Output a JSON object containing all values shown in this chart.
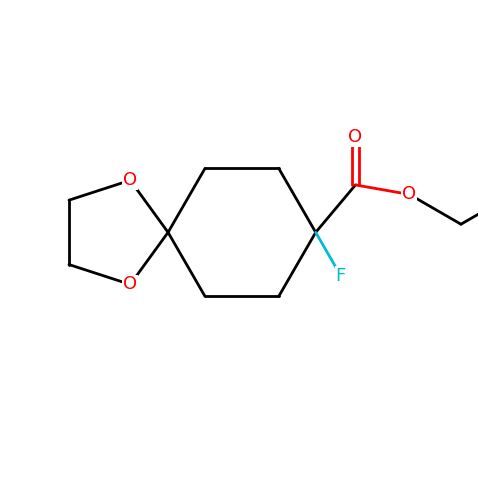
{
  "background_color": "#ffffff",
  "bond_color": "#000000",
  "oxygen_color": "#ff0000",
  "fluorine_color": "#00bcd4",
  "bond_width": 2.0,
  "figsize": [
    4.79,
    4.79
  ],
  "dpi": 100,
  "xlim": [
    0,
    10
  ],
  "ylim": [
    0,
    10
  ]
}
